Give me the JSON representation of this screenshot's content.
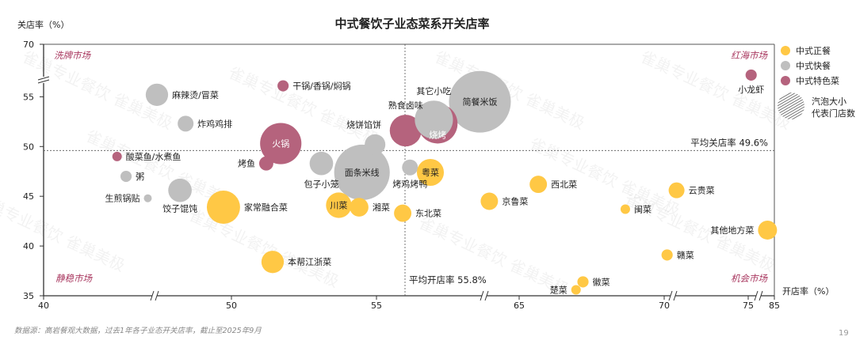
{
  "chart_data": {
    "type": "bubble",
    "title": "中式餐饮子业态菜系开关店率",
    "xlabel": "开店率（%）",
    "ylabel": "关店率（%）",
    "xlim": [
      40,
      85
    ],
    "ylim": [
      35,
      70
    ],
    "x_ticks": [
      "40",
      "50",
      "55",
      "65",
      "70",
      "75",
      "85"
    ],
    "y_ticks": [
      "35",
      "40",
      "45",
      "50",
      "55",
      "70"
    ],
    "axis_breaks": "broken axes (x and y)",
    "grid": false,
    "legend_position": "right",
    "colors": {
      "中式正餐": "#FFC845",
      "中式快餐": "#BFBFBF",
      "中式特色菜": "#B5637D",
      "quadrant": "#A8365E"
    },
    "legend": [
      "中式正餐",
      "中式快餐",
      "中式特色菜"
    ],
    "size_legend": [
      "汽泡大小",
      "代表门店数"
    ],
    "avg_close": {
      "label": "平均关店率 49.6%",
      "value": 49.6
    },
    "avg_open": {
      "label": "平均开店率 55.8%",
      "value": 55.8
    },
    "quadrants": {
      "top_left": "洗牌市场",
      "top_right": "红海市场",
      "bottom_left": "静稳市场",
      "bottom_right": "机会市场"
    },
    "points": [
      {
        "name": "面条米线",
        "group": "中式快餐",
        "x": 54.5,
        "y": 47.4,
        "size": 12.3,
        "label": "inside"
      },
      {
        "name": "简餐米饭",
        "group": "中式快餐",
        "x": 58.55,
        "y": 54.5,
        "size": 15.2,
        "label": "inside"
      },
      {
        "name": "熟食卤味",
        "group": "中式特色菜",
        "x": 56.0,
        "y": 51.6,
        "size": 4.0,
        "label": "above"
      },
      {
        "name": "烧烤",
        "group": "中式特色菜",
        "x": 57.1,
        "y": 52.3,
        "size": 6.3,
        "label": "inside-low"
      },
      {
        "name": "其它小吃",
        "group": "中式快餐",
        "x": 56.97,
        "y": 52.7,
        "size": 5.8,
        "label": "above"
      },
      {
        "name": "火锅",
        "group": "中式特色菜",
        "x": 51.7,
        "y": 50.3,
        "size": 6.8,
        "label": "inside"
      },
      {
        "name": "烧饼馅饼",
        "group": "中式快餐",
        "x": 54.95,
        "y": 50.2,
        "size": 1.7,
        "label": "above-left"
      },
      {
        "name": "干锅/香锅/焖锅",
        "group": "中式特色菜",
        "x": 51.78,
        "y": 56.1,
        "size": 0.5,
        "label": "right"
      },
      {
        "name": "麻辣烫/冒菜",
        "group": "中式快餐",
        "x": 47.48,
        "y": 55.2,
        "size": 2.0,
        "label": "right"
      },
      {
        "name": "炸鸡鸡排",
        "group": "中式快餐",
        "x": 48.45,
        "y": 52.3,
        "size": 1.0,
        "label": "right"
      },
      {
        "name": "酸菜鱼/水煮鱼",
        "group": "中式特色菜",
        "x": 44.9,
        "y": 49.0,
        "size": 0.36,
        "label": "right"
      },
      {
        "name": "烤鱼",
        "group": "中式特色菜",
        "x": 51.2,
        "y": 48.3,
        "size": 0.8,
        "label": "left"
      },
      {
        "name": "包子小笼",
        "group": "中式快餐",
        "x": 53.1,
        "y": 48.3,
        "size": 2.2,
        "label": "below"
      },
      {
        "name": "烤鸡烤鸭",
        "group": "中式快餐",
        "x": 56.15,
        "y": 47.9,
        "size": 1.0,
        "label": "below"
      },
      {
        "name": "粤菜",
        "group": "中式正餐",
        "x": 56.85,
        "y": 47.4,
        "size": 2.9,
        "label": "inside"
      },
      {
        "name": "粥",
        "group": "中式快餐",
        "x": 45.5,
        "y": 47.0,
        "size": 0.5,
        "label": "right"
      },
      {
        "name": "生煎锅贴",
        "group": "中式快餐",
        "x": 46.95,
        "y": 44.8,
        "size": 0.25,
        "label": "left"
      },
      {
        "name": "饺子馄饨",
        "group": "中式快餐",
        "x": 48.26,
        "y": 45.6,
        "size": 2.2,
        "label": "below-left"
      },
      {
        "name": "家常融合菜",
        "group": "中式正餐",
        "x": 49.73,
        "y": 43.9,
        "size": 4.4,
        "label": "right"
      },
      {
        "name": "川菜",
        "group": "中式正餐",
        "x": 53.7,
        "y": 44.1,
        "size": 2.6,
        "label": "inside"
      },
      {
        "name": "湘菜",
        "group": "中式正餐",
        "x": 54.4,
        "y": 43.9,
        "size": 1.4,
        "label": "right"
      },
      {
        "name": "东北菜",
        "group": "中式正餐",
        "x": 55.9,
        "y": 43.3,
        "size": 1.2,
        "label": "right"
      },
      {
        "name": "本帮江浙菜",
        "group": "中式正餐",
        "x": 51.42,
        "y": 38.4,
        "size": 2.0,
        "label": "right"
      },
      {
        "name": "西北菜",
        "group": "中式正餐",
        "x": 65.66,
        "y": 46.2,
        "size": 1.2,
        "label": "right"
      },
      {
        "name": "京鲁菜",
        "group": "中式正餐",
        "x": 63.95,
        "y": 44.5,
        "size": 1.2,
        "label": "right"
      },
      {
        "name": "云贵菜",
        "group": "中式正餐",
        "x": 72.5,
        "y": 45.6,
        "size": 1.0,
        "label": "right"
      },
      {
        "name": "闽菜",
        "group": "中式正餐",
        "x": 68.66,
        "y": 43.7,
        "size": 0.36,
        "label": "right"
      },
      {
        "name": "其他地方菜",
        "group": "中式正餐",
        "x": 84.75,
        "y": 41.6,
        "size": 1.44,
        "label": "left"
      },
      {
        "name": "赣菜",
        "group": "中式正餐",
        "x": 70.1,
        "y": 39.1,
        "size": 0.5,
        "label": "right"
      },
      {
        "name": "徽菜",
        "group": "中式正餐",
        "x": 67.2,
        "y": 36.4,
        "size": 0.5,
        "label": "right"
      },
      {
        "name": "楚菜",
        "group": "中式正餐",
        "x": 66.96,
        "y": 35.6,
        "size": 0.36,
        "label": "left"
      },
      {
        "name": "小龙虾",
        "group": "中式特色菜",
        "x": 75.1,
        "y": 58.5,
        "size": 0.5,
        "label": "below"
      }
    ]
  },
  "footer": {
    "source": "数据源：高岩餐观大数据，过去1年各子业态开关店率，截止至2025年9月",
    "page_number": "19"
  },
  "watermark": "雀巢专业餐饮 雀巢美极"
}
